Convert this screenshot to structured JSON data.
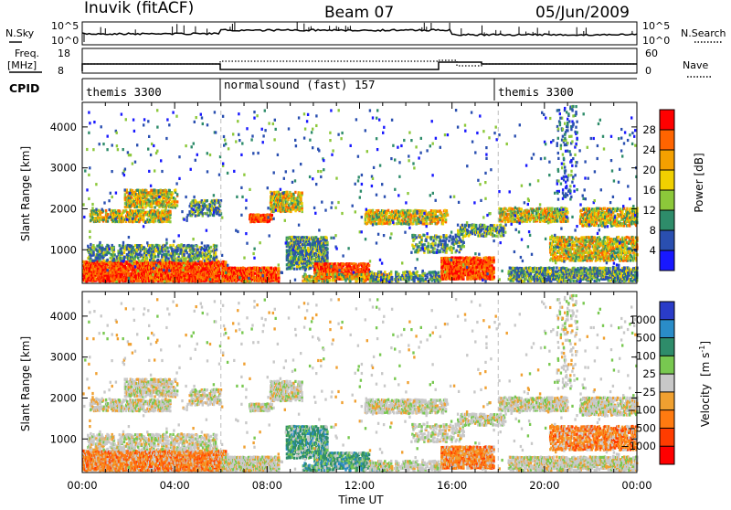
{
  "header": {
    "station": "Inuvik (fitACF)",
    "beam": "Beam 07",
    "date": "05/Jun/2009"
  },
  "top_panels": {
    "nsky_label": "N.Sky",
    "nsearch_label": "N.Search",
    "noise_ticks": [
      "10^5",
      "10^0"
    ],
    "freq_label_line1": "Freq.",
    "freq_label_line2": "[MHz]",
    "freq_ticks": [
      "18",
      "8"
    ],
    "nave_label": "Nave",
    "nave_ticks": [
      "60",
      "0"
    ],
    "cpid_label": "CPID",
    "cpid_segments": [
      {
        "label": "themis 3300",
        "start_hour": 0
      },
      {
        "label": "normalsound (fast) 157",
        "start_hour": 6
      },
      {
        "label": "themis 3300",
        "start_hour": 18
      }
    ]
  },
  "chart_data": [
    {
      "type": "heatmap",
      "name": "power-panel",
      "ylabel": "Slant Range [km]",
      "xlabel": "",
      "xlim_hours": [
        0,
        24
      ],
      "ylim": [
        180,
        4600
      ],
      "y_ticks": [
        "1000",
        "2000",
        "3000",
        "4000"
      ],
      "y_tick_values": [
        1000,
        2000,
        3000,
        4000
      ],
      "colorbar": {
        "label": "Power [dB]",
        "ticks": [
          "4",
          "8",
          "12",
          "16",
          "20",
          "24",
          "28"
        ],
        "colors": [
          "#1818ff",
          "#2a4fb0",
          "#2e8c6a",
          "#8cc83a",
          "#f0d000",
          "#f4a000",
          "#ff6400",
          "#ff0000"
        ]
      }
    },
    {
      "type": "heatmap",
      "name": "velocity-panel",
      "ylabel": "Slant Range [km]",
      "xlabel": "Time UT",
      "xlim_hours": [
        0,
        24
      ],
      "ylim": [
        180,
        4600
      ],
      "x_ticks": [
        "00:00",
        "04:00",
        "08:00",
        "12:00",
        "16:00",
        "20:00",
        "00:00"
      ],
      "x_tick_hours": [
        0,
        4,
        8,
        12,
        16,
        20,
        24
      ],
      "y_ticks": [
        "1000",
        "2000",
        "3000",
        "4000"
      ],
      "y_tick_values": [
        1000,
        2000,
        3000,
        4000
      ],
      "colorbar": {
        "label_text": "Velocity",
        "label_unit": "[m s",
        "label_sup": "-1",
        "label_close": "]",
        "ticks": [
          "1000",
          "500",
          "100",
          "25",
          "−25",
          "−100",
          "−500",
          "−1000"
        ],
        "colors": [
          "#2a3cc8",
          "#2a8cc8",
          "#2e8c6a",
          "#78c850",
          "#c8c8c8",
          "#f0a030",
          "#ff7a10",
          "#ff3c00",
          "#ff0000"
        ]
      }
    }
  ]
}
